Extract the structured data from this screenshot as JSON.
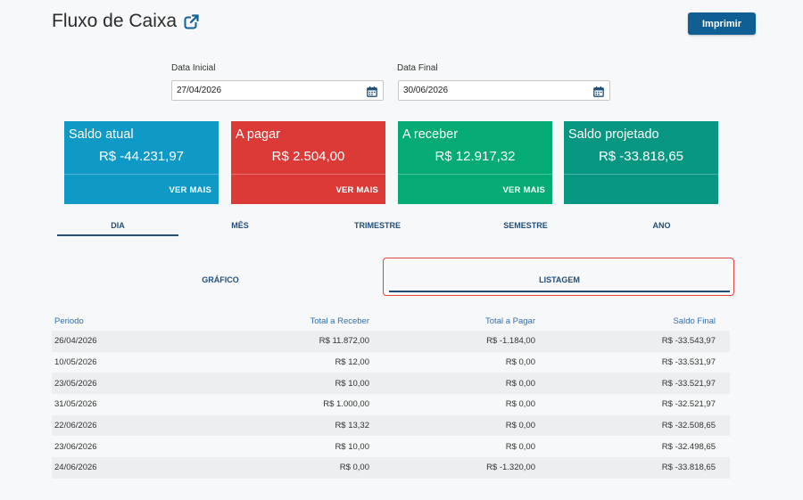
{
  "header": {
    "title": "Fluxo de Caixa",
    "print_label": "Imprimir"
  },
  "filters": {
    "start_label": "Data Inicial",
    "start_value": "27/04/2026",
    "end_label": "Data Final",
    "end_value": "30/06/2026"
  },
  "cards": [
    {
      "title": "Saldo atual",
      "value": "R$ -44.231,97",
      "more": "VER MAIS",
      "color": "#0e99c7"
    },
    {
      "title": "A pagar",
      "value": "R$ 2.504,00",
      "more": "VER MAIS",
      "color": "#db3a37"
    },
    {
      "title": "A receber",
      "value": "R$ 12.917,32",
      "more": "VER MAIS",
      "color": "#05ab74"
    },
    {
      "title": "Saldo projetado",
      "value": "R$ -33.818,65",
      "more": "",
      "color": "#069682"
    }
  ],
  "period_tabs": [
    "DIA",
    "MÊS",
    "TRIMESTRE",
    "SEMESTRE",
    "ANO"
  ],
  "period_active": "DIA",
  "view_tabs": [
    "GRÁFICO",
    "LISTAGEM"
  ],
  "view_active": "LISTAGEM",
  "table": {
    "headers": [
      "Periodo",
      "Total a Receber",
      "Total a Pagar",
      "Saldo Final"
    ],
    "rows": [
      [
        "26/04/2026",
        "R$ 11.872,00",
        "R$ -1.184,00",
        "R$ -33.543,97"
      ],
      [
        "10/05/2026",
        "R$ 12,00",
        "R$ 0,00",
        "R$ -33.531,97"
      ],
      [
        "23/05/2026",
        "R$ 10,00",
        "R$ 0,00",
        "R$ -33.521,97"
      ],
      [
        "31/05/2026",
        "R$ 1.000,00",
        "R$ 0,00",
        "R$ -32.521,97"
      ],
      [
        "22/06/2026",
        "R$ 13,32",
        "R$ 0,00",
        "R$ -32.508,65"
      ],
      [
        "23/06/2026",
        "R$ 10,00",
        "R$ 0,00",
        "R$ -32.498,65"
      ],
      [
        "24/06/2026",
        "R$ 0,00",
        "R$ -1.320,00",
        "R$ -33.818,65"
      ]
    ]
  },
  "colors": {
    "accent": "#0f5f94",
    "tab_text": "#1f4e79",
    "highlight": "#e04343"
  }
}
